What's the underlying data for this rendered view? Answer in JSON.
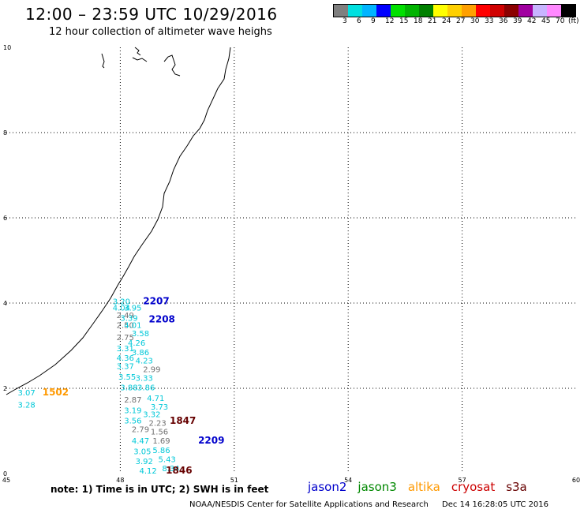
{
  "header": {
    "title": "12:00 – 23:59 UTC 10/29/2016",
    "subtitle": "12 hour collection of altimeter wave heighs"
  },
  "colorbar": {
    "colors": [
      "#7f7f7f",
      "#00e0e0",
      "#00b4ff",
      "#0000ff",
      "#00e000",
      "#00b400",
      "#008000",
      "#ffff00",
      "#ffd000",
      "#ffa000",
      "#ff0000",
      "#d00000",
      "#8b0000",
      "#a000a0",
      "#c8b4ff",
      "#ff88ff",
      "#000000"
    ],
    "labels": [
      "3",
      "6",
      "9",
      "12",
      "15",
      "18",
      "21",
      "24",
      "27",
      "30",
      "33",
      "36",
      "39",
      "42",
      "45",
      "70",
      "(ft)"
    ]
  },
  "axes": {
    "lon_min": 45,
    "lon_max": 60,
    "lat_min": 0,
    "lat_max": 10,
    "x_ticks": [
      "45",
      "48",
      "51",
      "54",
      "57",
      "60"
    ],
    "y_ticks": [
      "0",
      "2",
      "4",
      "6",
      "8",
      "10"
    ]
  },
  "chart_data": {
    "type": "scatter",
    "colors": {
      "jason2": "#0000cc",
      "jason3": "#008800",
      "altika": "#ff9900",
      "cryosat": "#cc0000",
      "s3a": "#660000",
      "cyan": "#00c8d8",
      "gray": "#707070"
    },
    "points": [
      {
        "lon": 47.8,
        "lat": 3.97,
        "label": "3.20",
        "color": "#00c8d8"
      },
      {
        "lon": 47.8,
        "lat": 3.82,
        "label": "4.04",
        "color": "#00c8d8"
      },
      {
        "lon": 48.1,
        "lat": 3.82,
        "label": "3.95",
        "color": "#00c8d8"
      },
      {
        "lon": 47.9,
        "lat": 3.65,
        "label": "2.49",
        "color": "#707070"
      },
      {
        "lon": 48.0,
        "lat": 3.58,
        "label": "3.39",
        "color": "#00c8d8"
      },
      {
        "lon": 47.9,
        "lat": 3.42,
        "label": "2.50",
        "color": "#707070"
      },
      {
        "lon": 48.1,
        "lat": 3.42,
        "label": "4.01",
        "color": "#00c8d8"
      },
      {
        "lon": 48.3,
        "lat": 3.22,
        "label": "3.58",
        "color": "#00c8d8"
      },
      {
        "lon": 47.9,
        "lat": 3.13,
        "label": "2.75",
        "color": "#707070"
      },
      {
        "lon": 48.2,
        "lat": 3.0,
        "label": "4.26",
        "color": "#00c8d8"
      },
      {
        "lon": 47.9,
        "lat": 2.87,
        "label": "3.31",
        "color": "#00c8d8"
      },
      {
        "lon": 48.3,
        "lat": 2.78,
        "label": "3.86",
        "color": "#00c8d8"
      },
      {
        "lon": 47.9,
        "lat": 2.65,
        "label": "4.36",
        "color": "#00c8d8"
      },
      {
        "lon": 48.4,
        "lat": 2.58,
        "label": "4.23",
        "color": "#00c8d8"
      },
      {
        "lon": 47.9,
        "lat": 2.45,
        "label": "3.37",
        "color": "#00c8d8"
      },
      {
        "lon": 48.6,
        "lat": 2.38,
        "label": "2.99",
        "color": "#707070"
      },
      {
        "lon": 47.95,
        "lat": 2.2,
        "label": "3.55",
        "color": "#00c8d8"
      },
      {
        "lon": 48.4,
        "lat": 2.18,
        "label": "3.33",
        "color": "#00c8d8"
      },
      {
        "lon": 48.0,
        "lat": 1.95,
        "label": "3.88",
        "color": "#00c8d8"
      },
      {
        "lon": 48.45,
        "lat": 1.95,
        "label": "3.86",
        "color": "#00c8d8"
      },
      {
        "lon": 48.7,
        "lat": 1.7,
        "label": "4.71",
        "color": "#00c8d8"
      },
      {
        "lon": 48.1,
        "lat": 1.67,
        "label": "2.87",
        "color": "#707070"
      },
      {
        "lon": 48.8,
        "lat": 1.5,
        "label": "3.73",
        "color": "#00c8d8"
      },
      {
        "lon": 48.1,
        "lat": 1.42,
        "label": "3.19",
        "color": "#00c8d8"
      },
      {
        "lon": 48.6,
        "lat": 1.32,
        "label": "3.32",
        "color": "#00c8d8"
      },
      {
        "lon": 48.1,
        "lat": 1.18,
        "label": "3.56",
        "color": "#00c8d8"
      },
      {
        "lon": 48.75,
        "lat": 1.12,
        "label": "2.23",
        "color": "#707070"
      },
      {
        "lon": 48.3,
        "lat": 0.97,
        "label": "2.79",
        "color": "#707070"
      },
      {
        "lon": 48.8,
        "lat": 0.92,
        "label": "1.56",
        "color": "#707070"
      },
      {
        "lon": 48.3,
        "lat": 0.7,
        "label": "4.47",
        "color": "#00c8d8"
      },
      {
        "lon": 48.85,
        "lat": 0.7,
        "label": "1.69",
        "color": "#707070"
      },
      {
        "lon": 48.35,
        "lat": 0.45,
        "label": "3.05",
        "color": "#00c8d8"
      },
      {
        "lon": 48.85,
        "lat": 0.48,
        "label": "5.86",
        "color": "#00c8d8"
      },
      {
        "lon": 48.4,
        "lat": 0.22,
        "label": "3.92",
        "color": "#00c8d8"
      },
      {
        "lon": 49.0,
        "lat": 0.27,
        "label": "5.43",
        "color": "#00c8d8"
      },
      {
        "lon": 48.5,
        "lat": 0.0,
        "label": "4.12",
        "color": "#00c8d8"
      },
      {
        "lon": 49.1,
        "lat": 0.06,
        "label": "8.34",
        "color": "#00c8d8"
      },
      {
        "lon": 45.3,
        "lat": 1.83,
        "label": "3.07",
        "color": "#00c8d8"
      },
      {
        "lon": 45.3,
        "lat": 1.55,
        "label": "3.28",
        "color": "#00c8d8"
      }
    ],
    "passes": [
      {
        "lon": 48.6,
        "lat": 3.97,
        "label": "2207",
        "color": "#0000cc"
      },
      {
        "lon": 48.75,
        "lat": 3.55,
        "label": "2208",
        "color": "#0000cc"
      },
      {
        "lon": 49.3,
        "lat": 1.17,
        "label": "1847",
        "color": "#660000"
      },
      {
        "lon": 50.05,
        "lat": 0.7,
        "label": "2209",
        "color": "#0000cc"
      },
      {
        "lon": 49.2,
        "lat": 0.0,
        "label": "1846",
        "color": "#660000"
      },
      {
        "lon": 45.95,
        "lat": 1.83,
        "label": "1502",
        "color": "#ff9900"
      }
    ]
  },
  "footer": {
    "note": "note: 1) Time is in UTC; 2) SWH is in feet",
    "legend": [
      {
        "name": "jason2",
        "color": "#0000cc"
      },
      {
        "name": "jason3",
        "color": "#008800"
      },
      {
        "name": "altika",
        "color": "#ff9900"
      },
      {
        "name": "cryosat",
        "color": "#cc0000"
      },
      {
        "name": "s3a",
        "color": "#660000"
      }
    ],
    "credit": "NOAA/NESDIS Center for Satellite Applications and Research",
    "timestamp": "Dec 14 16:28:05 UTC 2016"
  }
}
